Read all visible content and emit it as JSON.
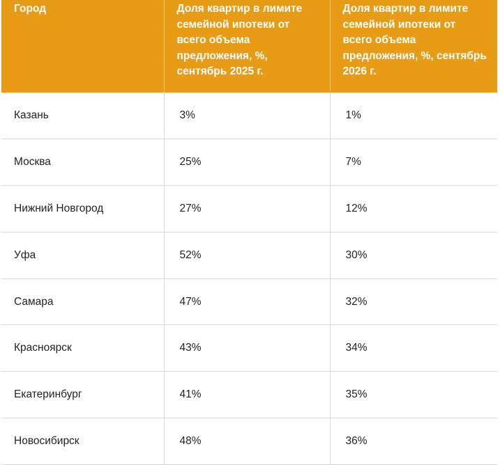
{
  "table": {
    "headers": [
      "Город",
      "Доля квартир в лимите семейной ипотеки от всего объема предложения, %, сентябрь 2025 г.",
      "Доля квартир в лимите семейной ипотеки от всего объема предложения, %, сентябрь 2026 г."
    ],
    "rows": [
      [
        "Казань",
        "3%",
        "1%"
      ],
      [
        "Москва",
        "25%",
        "7%"
      ],
      [
        "Нижний Новгород",
        "27%",
        "12%"
      ],
      [
        "Уфа",
        "52%",
        "30%"
      ],
      [
        "Самара",
        "47%",
        "32%"
      ],
      [
        "Красноярск",
        "43%",
        "34%"
      ],
      [
        "Екатеринбург",
        "41%",
        "35%"
      ],
      [
        "Новосибирск",
        "48%",
        "36%"
      ]
    ]
  },
  "colors": {
    "header_bg": "#e89b14",
    "header_text": "#ffffff",
    "grid": "#d9d9d9"
  }
}
